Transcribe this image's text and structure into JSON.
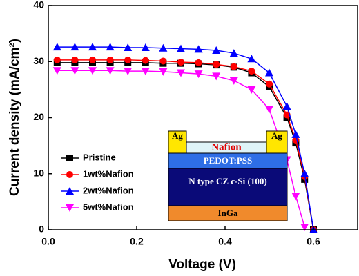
{
  "chart_data": {
    "type": "line",
    "x_label": "Voltage (V)",
    "y_label": "Current density (mA/cm²)",
    "x": [
      0.02,
      0.06,
      0.1,
      0.14,
      0.18,
      0.22,
      0.26,
      0.3,
      0.34,
      0.38,
      0.42,
      0.46,
      0.5,
      0.54,
      0.56,
      0.58,
      0.6
    ],
    "series": [
      {
        "name": "Pristine",
        "color": "#000000",
        "marker": "square",
        "values": [
          29.8,
          29.8,
          29.8,
          29.8,
          29.8,
          29.8,
          29.7,
          29.7,
          29.6,
          29.4,
          29.0,
          28.0,
          25.5,
          20.0,
          15.5,
          9.0,
          0
        ]
      },
      {
        "name": "1wt%Nafion",
        "color": "#ff0000",
        "marker": "circle",
        "values": [
          30.3,
          30.3,
          30.3,
          30.3,
          30.3,
          30.2,
          30.1,
          29.9,
          29.8,
          29.5,
          29.1,
          28.3,
          26.0,
          20.5,
          16.0,
          9.5,
          0
        ]
      },
      {
        "name": "2wt%Nafion",
        "color": "#0000ff",
        "marker": "triangle-up",
        "values": [
          32.6,
          32.6,
          32.6,
          32.6,
          32.5,
          32.5,
          32.4,
          32.3,
          32.2,
          32.0,
          31.5,
          30.5,
          28.0,
          22.0,
          17.0,
          10.0,
          0
        ]
      },
      {
        "name": "5wt%Nafion",
        "color": "#ff00ff",
        "marker": "triangle-down",
        "values": [
          28.4,
          28.4,
          28.4,
          28.4,
          28.3,
          28.3,
          28.2,
          28.0,
          27.8,
          27.4,
          26.6,
          25.0,
          21.5,
          12.5,
          6.0,
          0.5,
          null
        ]
      }
    ],
    "xlim": [
      0,
      0.7
    ],
    "xticks": [
      {
        "value": 0,
        "label": "0.0"
      },
      0.2,
      0.4,
      0.6
    ],
    "ylim": [
      0,
      40
    ],
    "yticks": [
      0,
      10,
      20,
      30,
      40
    ],
    "legend": "lower-left"
  },
  "inset": {
    "contacts": [
      "Ag",
      "Ag"
    ],
    "top": "Nafion",
    "layers": [
      "PEDOT:PSS",
      "N type CZ c-Si (100)",
      "InGa"
    ]
  }
}
